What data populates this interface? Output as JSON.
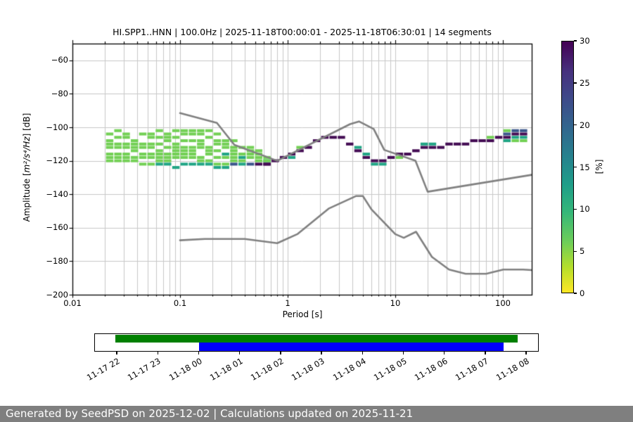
{
  "header": {
    "title": "HI.SPP1..HNN | 100.0Hz | 2025-11-18T00:00:01 - 2025-11-18T06:30:01 | 14 segments"
  },
  "footer": {
    "text": "Generated by SeedPSD on 2025-12-02 | Calculations updated on 2025-11-21"
  },
  "chart_data": {
    "type": "heatmap",
    "title": "HI.SPP1..HNN | 100.0Hz | 2025-11-18T00:00:01 - 2025-11-18T06:30:01 | 14 segments",
    "xlabel": "Period [s]",
    "ylabel": "Amplitude [m²/s⁴/Hz] [dB]",
    "ylabel_parts": {
      "prefix": "Amplitude [",
      "math": "m²/s⁴/Hz",
      "suffix": "] [dB]"
    },
    "xscale": "log",
    "xlim": [
      0.01,
      185
    ],
    "ylim": [
      -200,
      -50
    ],
    "xticks": [
      0.01,
      0.1,
      1,
      10,
      100
    ],
    "xtick_labels": [
      "0.01",
      "0.1",
      "1",
      "10",
      "100"
    ],
    "yticks": [
      -60,
      -80,
      -100,
      -120,
      -140,
      -160,
      -180,
      -200
    ],
    "ytick_labels": [
      "−60",
      "−80",
      "−100",
      "−120",
      "−140",
      "−160",
      "−180",
      "−200"
    ],
    "grid": true,
    "grid_color": "#c8c8c8",
    "colorbar": {
      "label": "[%]",
      "min": 0,
      "max": 30,
      "ticks": [
        0,
        5,
        10,
        15,
        20,
        25,
        30
      ],
      "tick_labels": [
        "0",
        "5",
        "10",
        "15",
        "20",
        "25",
        "30"
      ],
      "colormap": "viridis_r"
    },
    "percent_colors": {
      "pct7": "#73d055",
      "pct14": "#21a585",
      "pct21": "#3b568b",
      "pct29": "#440d54"
    },
    "noise_models": {
      "color": "#808080",
      "nhnm": [
        [
          0.1,
          -91.5
        ],
        [
          0.22,
          -97.4
        ],
        [
          0.32,
          -110.5
        ],
        [
          0.8,
          -120
        ],
        [
          3.8,
          -98.1
        ],
        [
          4.6,
          -96.5
        ],
        [
          6.3,
          -101
        ],
        [
          7.9,
          -113.5
        ],
        [
          15.4,
          -120
        ],
        [
          20,
          -138.5
        ],
        [
          185,
          -128.4
        ]
      ],
      "nlnm": [
        [
          0.1,
          -167.5
        ],
        [
          0.17,
          -166.7
        ],
        [
          0.4,
          -166.7
        ],
        [
          0.8,
          -169.2
        ],
        [
          1.24,
          -163.7
        ],
        [
          2.4,
          -148.6
        ],
        [
          4.3,
          -141.1
        ],
        [
          5,
          -141.1
        ],
        [
          6,
          -149
        ],
        [
          10,
          -163.8
        ],
        [
          12,
          -166
        ],
        [
          15.6,
          -162.4
        ],
        [
          21.9,
          -177.4
        ],
        [
          31.6,
          -185
        ],
        [
          45,
          -187.5
        ],
        [
          70,
          -187.5
        ],
        [
          101,
          -185
        ],
        [
          154,
          -185
        ],
        [
          185,
          -185.3
        ]
      ]
    },
    "ppsd": {
      "bins_per_decade": 13,
      "db_bin_height": 2,
      "period_range": [
        0.02,
        185
      ],
      "mode": [
        [
          0.55,
          -121.6
        ],
        [
          0.75,
          -121
        ],
        [
          0.9,
          -119.2
        ],
        [
          1,
          -117.2
        ],
        [
          1.25,
          -114.5
        ],
        [
          1.6,
          -111.5
        ],
        [
          2,
          -107.5
        ],
        [
          2.3,
          -106.5
        ],
        [
          3,
          -106.5
        ],
        [
          3.3,
          -107.2
        ],
        [
          4,
          -110.5
        ],
        [
          4.5,
          -113.5
        ],
        [
          5,
          -116.5
        ],
        [
          5.6,
          -118.5
        ],
        [
          6.3,
          -119.5
        ],
        [
          8,
          -119.6
        ],
        [
          9,
          -119
        ],
        [
          10,
          -117.6
        ],
        [
          12,
          -115.8
        ],
        [
          15,
          -114
        ],
        [
          20,
          -112.6
        ],
        [
          30,
          -111
        ],
        [
          40,
          -109.6
        ],
        [
          60,
          -108
        ],
        [
          85,
          -107
        ],
        [
          100,
          -105.6
        ],
        [
          140,
          -103.6
        ],
        [
          185,
          -102.4
        ]
      ],
      "strings": [
        {
          "w": 1,
          "pts": [
            [
              0.02,
              -104
            ],
            [
              0.03,
              -102.5
            ],
            [
              0.045,
              -104.5
            ],
            [
              0.07,
              -103.5
            ],
            [
              0.1,
              -101.5
            ],
            [
              0.14,
              -101
            ],
            [
              0.18,
              -102.5
            ],
            [
              0.25,
              -106
            ],
            [
              0.35,
              -110
            ],
            [
              0.5,
              -114
            ],
            [
              0.65,
              -117
            ],
            [
              0.9,
              -119.2
            ]
          ]
        },
        {
          "w": 1,
          "pts": [
            [
              0.02,
              -107
            ],
            [
              0.03,
              -106
            ],
            [
              0.05,
              -107.5
            ],
            [
              0.08,
              -105.5
            ],
            [
              0.12,
              -104
            ],
            [
              0.16,
              -104.5
            ],
            [
              0.22,
              -107
            ],
            [
              0.3,
              -110.5
            ],
            [
              0.42,
              -113.5
            ],
            [
              0.58,
              -116.5
            ],
            [
              0.75,
              -119.5
            ],
            [
              0.9,
              -119.2
            ]
          ]
        },
        {
          "w": 1,
          "pts": [
            [
              0.02,
              -110.5
            ],
            [
              0.035,
              -109
            ],
            [
              0.06,
              -110.5
            ],
            [
              0.09,
              -108.5
            ],
            [
              0.13,
              -107.5
            ],
            [
              0.18,
              -109
            ],
            [
              0.25,
              -112
            ],
            [
              0.36,
              -115
            ],
            [
              0.5,
              -117.5
            ],
            [
              0.68,
              -120
            ],
            [
              0.9,
              -119.5
            ]
          ]
        },
        {
          "w": 1,
          "pts": [
            [
              0.02,
              -113
            ],
            [
              0.04,
              -112
            ],
            [
              0.07,
              -113.5
            ],
            [
              0.1,
              -111.5
            ],
            [
              0.14,
              -110.5
            ],
            [
              0.2,
              -112.5
            ],
            [
              0.3,
              -115.5
            ],
            [
              0.45,
              -118
            ],
            [
              0.62,
              -120.5
            ],
            [
              0.9,
              -120
            ]
          ]
        },
        {
          "w": 1,
          "pts": [
            [
              0.02,
              -115.5
            ],
            [
              0.04,
              -115
            ],
            [
              0.06,
              -116.5
            ],
            [
              0.1,
              -114.5
            ],
            [
              0.15,
              -113
            ],
            [
              0.21,
              -115
            ],
            [
              0.3,
              -117.5
            ],
            [
              0.45,
              -119.5
            ],
            [
              0.6,
              -121.5
            ],
            [
              0.9,
              -120
            ]
          ]
        },
        {
          "w": 1,
          "pts": [
            [
              0.02,
              -118
            ],
            [
              0.05,
              -118.5
            ],
            [
              0.08,
              -117
            ],
            [
              0.12,
              -115.5
            ],
            [
              0.18,
              -117
            ],
            [
              0.26,
              -119
            ],
            [
              0.4,
              -121
            ],
            [
              0.6,
              -122
            ],
            [
              0.9,
              -120.5
            ]
          ]
        },
        {
          "w": 1,
          "pts": [
            [
              0.02,
              -120
            ],
            [
              0.05,
              -121
            ],
            [
              0.09,
              -119.5
            ],
            [
              0.14,
              -118.5
            ],
            [
              0.2,
              -120.5
            ],
            [
              0.3,
              -122.3
            ],
            [
              0.9,
              -120.8
            ]
          ]
        },
        {
          "w": 2,
          "pts": [
            [
              0.055,
              -122.5
            ],
            [
              0.3,
              -122.4
            ],
            [
              0.6,
              -122
            ],
            [
              0.9,
              -121.2
            ]
          ]
        }
      ]
    }
  },
  "timeline": {
    "tick_labels": [
      "11-17 22",
      "11-17 23",
      "11-18 00",
      "11-18 01",
      "11-18 02",
      "11-18 03",
      "11-18 04",
      "11-18 05",
      "11-18 06",
      "11-18 07",
      "11-18 08"
    ],
    "tick_start_frac": 0.0506,
    "tick_step_frac": 0.0921,
    "bars": [
      {
        "name": "coverage-bar-green",
        "color": "#008000",
        "x0": 0.0475,
        "x1": 0.9525,
        "row": "top"
      },
      {
        "name": "coverage-bar-blue",
        "color": "#0000ff",
        "x0": 0.2358,
        "x1": 0.9209,
        "row": "bottom"
      }
    ]
  }
}
